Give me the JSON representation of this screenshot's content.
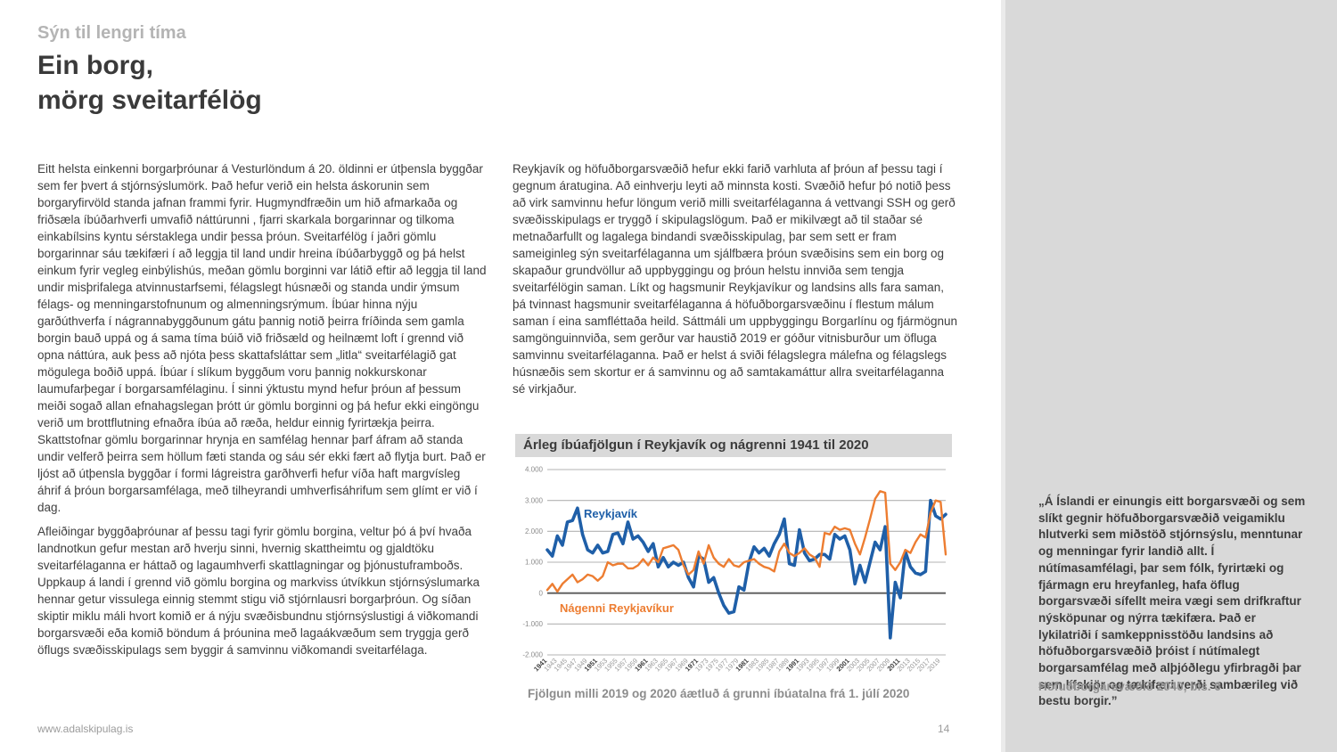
{
  "page": {
    "kicker": "Sýn til lengri tíma",
    "title_line1": "Ein borg,",
    "title_line2": "mörg sveitarfélög",
    "footer_url": "www.adalskipulag.is",
    "page_number": "14"
  },
  "columns": {
    "col1_para1": "Eitt helsta einkenni borgarþróunar á Vesturlöndum á 20. öldinni er útþensla byggðar sem fer þvert á stjórnsýslumörk.  Það hefur verið ein helsta áskorunin sem borgaryfirvöld standa jafnan frammi fyrir. Hugmyndfræðin um hið afmarkaða og friðsæla íbúðarhverfi umvafið náttúrunni , fjarri skarkala borgarinnar og tilkoma einkabílsins kyntu sérstaklega undir þessa þróun. Sveitarfélög í jaðri gömlu borgarinnar sáu tækifæri í að leggja til land undir hreina íbúðarbyggð og þá helst einkum fyrir vegleg einbýlishús, meðan gömlu borginni var látið eftir að leggja til land undir misþrifalega atvinnustarfsemi, félagslegt húsnæði og standa undir ýmsum félags- og menningarstofnunum og almenningsrýmum. Íbúar hinna nýju garðúthverfa í nágrannabyggðunum gátu þannig notið þeirra fríðinda sem gamla borgin bauð uppá og á sama tíma búið við friðsæld og heilnæmt loft í grennd við opna náttúra, auk þess að njóta þess skattafsláttar sem „litla“ sveitarfélagið gat mögulega boðið uppá. Íbúar í slíkum byggðum voru þannig nokkurskonar laumufarþegar í borgarsamfélaginu. Í sinni ýktustu mynd hefur þróun af þessum meiði sogað allan efnahagslegan þrótt úr gömlu borginni og þá hefur ekki eingöngu verið um brottflutning efnaðra íbúa að ræða, heldur einnig fyrirtækja þeirra. Skattstofnar gömlu borgarinnar hrynja en samfélag hennar þarf áfram að standa undir velferð þeirra sem höllum fæti standa og sáu sér ekki fært að flytja burt. Það er ljóst að útþensla byggðar í formi lágreistra garðhverfi hefur víða haft margvísleg áhrif á þróun borgarsamfélaga, með tilheyrandi umhverfisáhrifum sem glímt er við í dag.",
    "col1_para2": "Afleiðingar byggðaþróunar af þessu tagi fyrir gömlu borgina, veltur þó á því hvaða landnotkun gefur mestan arð hverju sinni, hvernig skattheimtu og gjaldtöku sveitarfélaganna er háttað og lagaumhverfi skattlagningar og þjónustuframboðs. Uppkaup á landi í grennd við gömlu borgina og markviss útvíkkun stjórnsýslumarka hennar getur vissulega einnig stemmt stigu við stjórnlausri borgarþróun. Og síðan skiptir miklu máli hvort komið er á nýju svæðisbundnu stjórnsýslustigi á viðkomandi borgarsvæði eða komið böndum á þróunina með lagaákvæðum sem tryggja gerð öflugs svæðisskipulags sem byggir á samvinnu viðkomandi sveitarfélaga.",
    "col2_para1": "Reykjavík og höfuðborgarsvæðið hefur ekki farið varhluta af þróun af þessu tagi í gegnum áratugina. Að einhverju leyti að minnsta kosti. Svæðið hefur þó notið þess að virk samvinnu hefur löngum verið milli sveitarfélaganna á vettvangi SSH og gerð svæðisskipulags er tryggð í skipulagslögum. Það er mikilvægt að til staðar sé metnaðarfullt og lagalega bindandi svæðisskipulag, þar sem sett er fram sameiginleg sýn sveitarfélaganna um sjálfbæra þróun svæðisins sem ein borg og skapaður grundvöllur að uppbyggingu og þróun helstu innviða sem tengja sveitarfélögin saman. Líkt og hagsmunir Reykjavíkur og landsins alls fara saman, þá tvinnast hagsmunir sveitarfélaganna á höfuðborgarsvæðinu í flestum málum saman í eina samfléttaða heild. Sáttmáli um uppbyggingu Borgarlínu og fjármögnun samgönguinnviða, sem gerður var haustið 2019 er góður vitnisburður um öfluga samvinnu sveitarfélaganna. Það er helst á sviði félagslegra málefna og félagslegs húsnæðis sem skortur er á samvinnu og að samtakamáttur allra sveitarfélaganna sé virkjaður."
  },
  "chart": {
    "header": "Árleg íbúafjölgun í Reykjavík og nágrenni 1941 til 2020",
    "caption": "Fjölgun milli 2019 og 2020 áætluð á grunni íbúatalna frá 1. júlí 2020"
  },
  "chart_data": {
    "type": "line",
    "title": "Árleg íbúafjölgun í Reykjavík og nágrenni 1941 til 2020",
    "x_start": 1941,
    "x_end": 2020,
    "ylim": [
      -2000,
      4000
    ],
    "y_ticks": [
      4000,
      3000,
      2000,
      1000,
      0,
      -1000,
      -2000
    ],
    "y_tick_labels": [
      "4.000",
      "3.000",
      "2.000",
      "1.000",
      "0",
      "-1.000",
      "-2.000"
    ],
    "x_tick_labels": [
      1941,
      1943,
      1945,
      1947,
      1949,
      1951,
      1953,
      1955,
      1957,
      1959,
      1961,
      1963,
      1965,
      1967,
      1969,
      1971,
      1973,
      1975,
      1977,
      1979,
      1981,
      1983,
      1985,
      1987,
      1989,
      1991,
      1993,
      1995,
      1997,
      1999,
      2001,
      2003,
      2005,
      2007,
      2009,
      2011,
      2013,
      2015,
      2017,
      2019
    ],
    "grid": true,
    "legend": "inline-labels",
    "series": [
      {
        "name": "Reykjavík",
        "color": "#1f5fa8",
        "values": [
          1400,
          1200,
          1850,
          1550,
          2300,
          2350,
          2750,
          1900,
          1400,
          1300,
          1550,
          1300,
          1350,
          1900,
          1950,
          1600,
          2300,
          1750,
          1850,
          1650,
          1350,
          1600,
          850,
          1150,
          850,
          1000,
          900,
          1000,
          500,
          200,
          1200,
          1100,
          350,
          500,
          0,
          -400,
          -650,
          -600,
          200,
          100,
          1000,
          1500,
          1300,
          1450,
          1200,
          1600,
          1900,
          2400,
          950,
          900,
          2050,
          1300,
          1050,
          1100,
          1250,
          1250,
          1100,
          1900,
          1750,
          1850,
          1400,
          300,
          900,
          350,
          1000,
          1650,
          1400,
          2150,
          -1450,
          350,
          -150,
          1350,
          850,
          650,
          600,
          700,
          3000,
          2500,
          2400,
          2550
        ]
      },
      {
        "name": "Nágenni Reykjavíkur",
        "color": "#ed7d31",
        "values": [
          100,
          300,
          50,
          300,
          450,
          600,
          350,
          450,
          600,
          550,
          400,
          550,
          1000,
          900,
          950,
          950,
          800,
          800,
          900,
          1100,
          900,
          1150,
          1000,
          1450,
          1500,
          1550,
          1400,
          900,
          600,
          750,
          1350,
          950,
          1550,
          1150,
          950,
          850,
          1100,
          900,
          850,
          1000,
          1050,
          1100,
          950,
          850,
          800,
          700,
          1350,
          1600,
          1300,
          1200,
          1300,
          1450,
          1250,
          1150,
          850,
          1950,
          1900,
          2150,
          2050,
          2100,
          2050,
          1600,
          1250,
          1800,
          2400,
          3050,
          3300,
          3250,
          950,
          750,
          1000,
          1400,
          1300,
          1650,
          1900,
          1800,
          2600,
          3000,
          2950,
          1250
        ]
      }
    ]
  },
  "quote": {
    "text": "„Á Íslandi er einungis eitt borgarsvæði og sem slíkt gegnir höfuðborgarsvæðið veigamiklu hlutverki sem miðstöð stjórnsýslu, menntunar og menningar fyrir landið allt. Í nútímasamfélagi, þar sem fólk, fyrirtæki og fjármagn eru hreyfanleg, hafa öflug borgarsvæði sífellt meira vægi sem drifkraftur nýsköpunar og nýrra tækifæra. Það er lykilatriði í samkeppnisstöðu landsins að höfuðborgarsvæðið þróist í nútímalegt borgarsamfélag með alþjóðlegu yfirbragði þar sem lífskjör og tækifæri verði sambærileg við bestu borgir.”",
    "attribution": "Höfuðborgarsvæðið 2040, bls. 6"
  }
}
